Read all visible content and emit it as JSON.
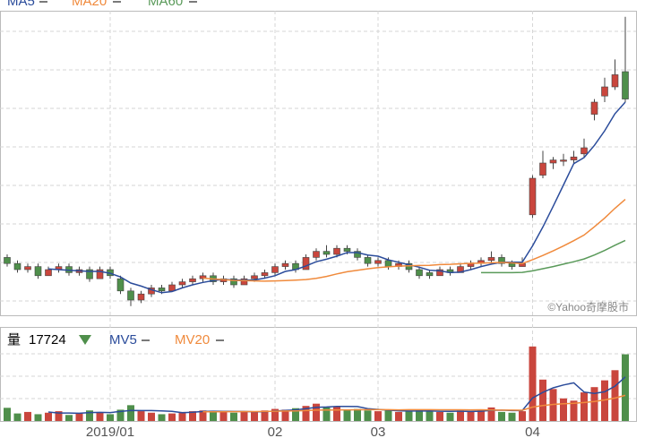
{
  "chart_data": [
    {
      "type": "candlestick",
      "open": [
        19,
        17,
        15,
        16,
        13,
        15,
        16,
        14,
        15,
        12,
        15,
        12,
        8,
        5,
        7,
        9,
        8,
        10,
        11,
        12,
        13,
        11,
        12,
        10,
        12,
        13,
        14,
        16,
        17,
        15,
        19,
        21,
        20,
        22,
        21,
        19,
        17,
        18,
        16,
        17,
        15,
        14,
        13,
        15,
        14,
        16,
        17,
        18,
        19,
        17,
        16,
        33,
        46,
        50,
        51,
        51,
        53,
        66,
        72,
        75,
        80
      ],
      "high": [
        20,
        18,
        17,
        17,
        16,
        17,
        17,
        16,
        16,
        16,
        16,
        13,
        9,
        8,
        10,
        10,
        11,
        12,
        13,
        14,
        14,
        13,
        13,
        13,
        14,
        15,
        17,
        18,
        18,
        20,
        22,
        23,
        23,
        23,
        22,
        20,
        19,
        19,
        18,
        18,
        16,
        15,
        16,
        16,
        17,
        18,
        19,
        21,
        20,
        18,
        19,
        46,
        54,
        52,
        53,
        54,
        58,
        71,
        78,
        84,
        98
      ],
      "low": [
        16,
        14,
        14,
        12,
        13,
        14,
        13,
        13,
        11,
        12,
        12,
        7,
        3,
        4,
        6,
        7,
        8,
        9,
        10,
        11,
        10,
        10,
        9,
        10,
        11,
        12,
        13,
        15,
        14,
        15,
        18,
        19,
        19,
        20,
        18,
        16,
        16,
        15,
        15,
        14,
        12,
        12,
        13,
        13,
        14,
        15,
        16,
        17,
        16,
        15,
        16,
        32,
        45,
        48,
        49,
        50,
        52,
        64,
        70,
        74,
        70
      ],
      "close": [
        17,
        15,
        16,
        13,
        15,
        16,
        14,
        15,
        12,
        15,
        13,
        8,
        5,
        7,
        9,
        8,
        10,
        11,
        12,
        13,
        11,
        12,
        10,
        12,
        13,
        14,
        16,
        17,
        15,
        19,
        21,
        20,
        22,
        21,
        19,
        17,
        18,
        16,
        17,
        15,
        13,
        13,
        15,
        14,
        16,
        17,
        18,
        19,
        17,
        16,
        17,
        45,
        50,
        51,
        51,
        52,
        55,
        70,
        75,
        79,
        71
      ],
      "up_color": "#c9463d",
      "down_color": "#4f8f4b",
      "ylim": [
        0,
        100
      ],
      "xticks": [
        {
          "value": 10,
          "label": "2019/01"
        },
        {
          "value": 26,
          "label": "02"
        },
        {
          "value": 36,
          "label": "03"
        },
        {
          "value": 51,
          "label": "04"
        }
      ],
      "series": [
        {
          "name": "MA5",
          "color": "#2b4c9b",
          "values": [
            null,
            null,
            null,
            null,
            15.2,
            15.0,
            14.8,
            14.6,
            14.4,
            14.4,
            13.8,
            12.6,
            10.6,
            9.6,
            8.4,
            7.4,
            7.8,
            9.0,
            10.0,
            10.8,
            11.4,
            11.8,
            11.6,
            11.6,
            11.6,
            12.2,
            13.0,
            14.4,
            15.0,
            16.2,
            17.6,
            18.4,
            19.4,
            20.6,
            20.6,
            19.8,
            19.4,
            18.2,
            17.4,
            16.6,
            15.8,
            14.8,
            14.6,
            14.0,
            14.2,
            15.0,
            16.0,
            16.8,
            17.4,
            17.4,
            17.4,
            22.8,
            29.0,
            35.8,
            42.8,
            49.8,
            51.8,
            55.8,
            60.6,
            66.2,
            70.0
          ]
        },
        {
          "name": "MA20",
          "color": "#f08a3c",
          "values": [
            null,
            null,
            null,
            null,
            null,
            null,
            null,
            null,
            null,
            null,
            null,
            null,
            null,
            null,
            null,
            null,
            null,
            null,
            null,
            12.2,
            11.9,
            11.75,
            11.45,
            11.4,
            11.3,
            11.2,
            11.3,
            11.4,
            11.55,
            11.75,
            12.15,
            12.75,
            13.6,
            14.3,
            14.8,
            15.25,
            15.65,
            15.9,
            16.15,
            16.25,
            16.35,
            16.4,
            16.65,
            16.75,
            16.9,
            17.05,
            17.15,
            17.25,
            17.35,
            17.2,
            17.0,
            18.25,
            19.65,
            21.15,
            22.75,
            24.5,
            26.35,
            29.05,
            31.95,
            35.15,
            38.05
          ]
        },
        {
          "name": "MA60",
          "color": "#5a9a5a",
          "values": [
            null,
            null,
            null,
            null,
            null,
            null,
            null,
            null,
            null,
            null,
            null,
            null,
            null,
            null,
            null,
            null,
            null,
            null,
            null,
            null,
            null,
            null,
            null,
            null,
            null,
            null,
            null,
            null,
            null,
            null,
            null,
            null,
            null,
            null,
            null,
            null,
            null,
            null,
            null,
            null,
            null,
            null,
            null,
            null,
            null,
            null,
            14,
            14,
            14,
            14,
            14.1,
            14.6,
            15.3,
            16.0,
            16.8,
            17.6,
            18.5,
            19.8,
            21.3,
            23.0,
            24.6
          ]
        }
      ],
      "watermark": "©Yahoo奇摩股市"
    },
    {
      "type": "volume",
      "label": "量",
      "values": [
        3500,
        2000,
        2400,
        1800,
        2200,
        2600,
        1600,
        2000,
        2800,
        2200,
        1800,
        3000,
        4200,
        2600,
        2200,
        1800,
        2000,
        2400,
        2600,
        2800,
        2600,
        2400,
        2200,
        2600,
        2400,
        2800,
        3200,
        3000,
        3400,
        4000,
        4600,
        3600,
        3800,
        3000,
        3200,
        2800,
        2600,
        2800,
        2400,
        2600,
        3000,
        2600,
        2400,
        2200,
        2800,
        2600,
        3000,
        3600,
        2400,
        2200,
        2600,
        19800,
        11000,
        8500,
        6000,
        5400,
        7600,
        9000,
        10800,
        13500,
        17724
      ],
      "ylim": [
        0,
        25000
      ],
      "series": [
        {
          "name": "MV5",
          "color": "#2b4c9b",
          "values": [
            null,
            null,
            null,
            null,
            2380,
            2120,
            2120,
            2040,
            2240,
            2280,
            2240,
            2520,
            2800,
            2760,
            2760,
            2680,
            2560,
            2200,
            2320,
            2520,
            2600,
            2560,
            2520,
            2520,
            2440,
            2480,
            2640,
            2800,
            2960,
            3280,
            3640,
            3720,
            3880,
            3880,
            3840,
            3280,
            3080,
            2880,
            2720,
            2640,
            2640,
            2680,
            2600,
            2560,
            2600,
            2520,
            2600,
            2840,
            2880,
            2760,
            2760,
            6120,
            7600,
            8820,
            9580,
            10140,
            7700,
            7300,
            7760,
            9260,
            11724.8
          ]
        },
        {
          "name": "MV20",
          "color": "#f08a3c",
          "values": [
            null,
            null,
            null,
            null,
            null,
            null,
            null,
            null,
            null,
            null,
            null,
            null,
            null,
            null,
            null,
            null,
            null,
            null,
            null,
            2450,
            2450,
            2470,
            2480,
            2490,
            2500,
            2530,
            2590,
            2640,
            2680,
            2770,
            2880,
            2910,
            2930,
            2950,
            2980,
            3000,
            2990,
            2990,
            2960,
            2990,
            3000,
            2990,
            2970,
            2980,
            2970,
            2960,
            2970,
            2930,
            2880,
            2870,
            2860,
            3700,
            4100,
            4400,
            4600,
            4700,
            4900,
            5200,
            5600,
            6100,
            6800
          ]
        }
      ]
    }
  ]
}
